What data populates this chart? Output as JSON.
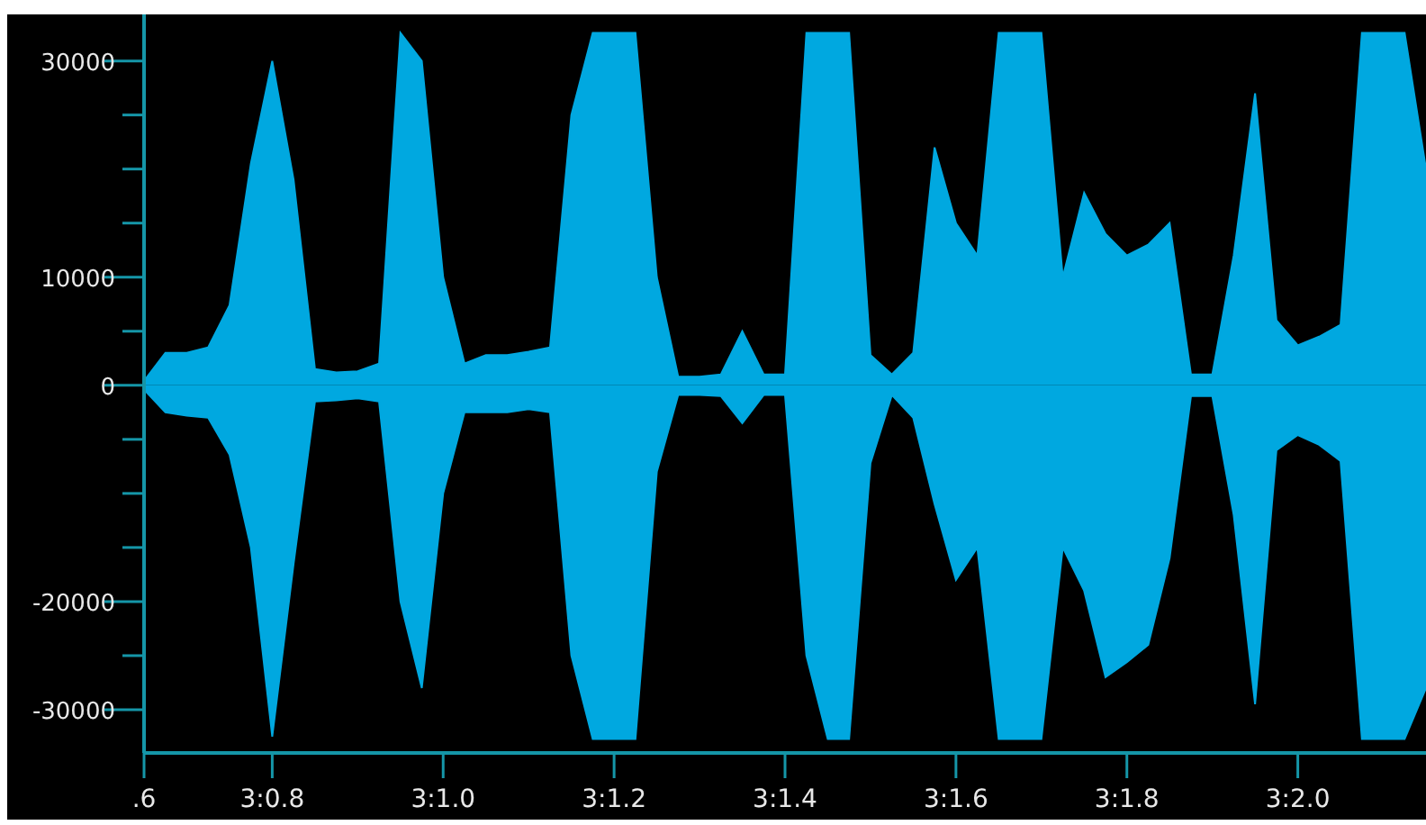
{
  "chart_data": {
    "type": "area",
    "categories": [
      ".6",
      null,
      null,
      null,
      null,
      null,
      "3:0.8",
      null,
      null,
      null,
      null,
      null,
      null,
      null,
      "3:1.0",
      null,
      null,
      null,
      null,
      null,
      null,
      null,
      "3:1.2",
      null,
      null,
      null,
      null,
      null,
      null,
      null,
      "3:1.4",
      null,
      null,
      null,
      null,
      null,
      null,
      null,
      "3:1.6",
      null,
      null,
      null,
      null,
      null,
      null,
      null,
      "3:1.8",
      null,
      null,
      null,
      null,
      null,
      null,
      null,
      "3:2.0",
      null,
      null,
      null,
      null,
      null,
      null
    ],
    "series": [
      {
        "color": "#00a8e0",
        "values": [
          400,
          3000,
          3000,
          3500,
          7400,
          20500,
          30000,
          19000,
          1500,
          1200,
          1300,
          2000,
          32600,
          30000,
          10000,
          2000,
          2800,
          2800,
          3100,
          3500,
          25000,
          32600,
          32600,
          32600,
          10000,
          800,
          800,
          1000,
          5000,
          1000,
          1000,
          32600,
          32600,
          32600,
          2800,
          1000,
          3000,
          22000,
          15000,
          12000,
          32600,
          32600,
          32600,
          10000,
          17800,
          14000,
          12000,
          13000,
          15000,
          1000,
          1000,
          12000,
          27000,
          6000,
          3700,
          4500,
          5600,
          32600,
          32600,
          32600,
          20000
        ]
      },
      {
        "color": "#00a8e0",
        "values": [
          -400,
          -2500,
          -2800,
          -3000,
          -6400,
          -15000,
          -32500,
          -16500,
          -1500,
          -1400,
          -1200,
          -1500,
          -20000,
          -28000,
          -10000,
          -2500,
          -2500,
          -2500,
          -2200,
          -2500,
          -25000,
          -32700,
          -32700,
          -32700,
          -8000,
          -900,
          -900,
          -1000,
          -3500,
          -900,
          -900,
          -25000,
          -32700,
          -32700,
          -7200,
          -900,
          -3000,
          -11000,
          -18000,
          -15000,
          -32700,
          -32700,
          -32700,
          -15000,
          -19000,
          -27000,
          -25600,
          -24000,
          -16000,
          -1000,
          -1000,
          -12000,
          -29500,
          -6000,
          -4600,
          -5500,
          -7000,
          -32700,
          -32700,
          -32700,
          -28000
        ]
      }
    ],
    "ylim": [
      -34000,
      34300
    ],
    "yticks": [
      30000,
      {
        "value": 25000,
        "label": null
      },
      {
        "value": 20000,
        "label": null
      },
      {
        "value": 15000,
        "label": null
      },
      10000,
      {
        "value": 5000,
        "label": null
      },
      0,
      {
        "value": -5000,
        "label": null
      },
      {
        "value": -10000,
        "label": null
      },
      {
        "value": -15000,
        "label": null
      },
      -20000,
      {
        "value": -25000,
        "label": null
      },
      -30000
    ]
  }
}
